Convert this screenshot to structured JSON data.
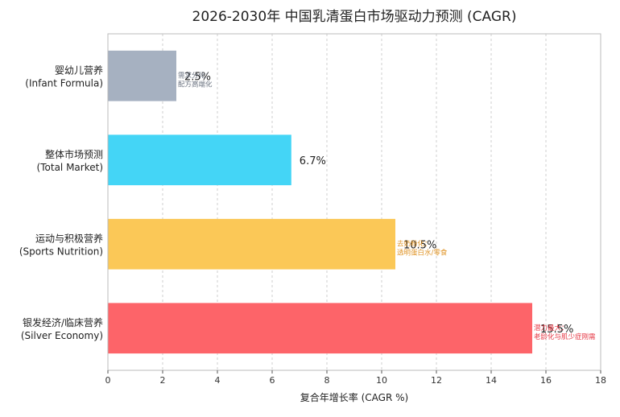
{
  "chart_data": {
    "type": "bar",
    "orientation": "horizontal",
    "title": "2026-2030年 中国乳清蛋白市场驱动力预测 (CAGR)",
    "xlabel": "复合年增长率 (CAGR %)",
    "ylabel": "",
    "xlim": [
      0,
      18
    ],
    "x_ticks": [
      "0",
      "2",
      "4",
      "6",
      "8",
      "10",
      "12",
      "14",
      "16",
      "18"
    ],
    "grid": "vertical dashed",
    "categories": [
      "婴幼儿营养\n(Infant Formula)",
      "整体市场预测\n(Total Market)",
      "运动与积极营养\n(Sports Nutrition)",
      "银发经济/临床营养\n(Silver Economy)"
    ],
    "values": [
      2.5,
      6.7,
      10.5,
      15.5
    ],
    "value_labels": [
      "2.5%",
      "6.7%",
      "10.5%",
      "15.5%"
    ],
    "annotations": [
      "需求分化：\n配方高端化",
      "",
      "去奶粉化：\n透明蛋白水/零食",
      "潜力最大：\n老龄化与肌少症刚需"
    ],
    "colors": [
      "#a6b1c1",
      "#44d5f6",
      "#fbc857",
      "#fd6469"
    ],
    "annotation_colors": [
      "#6b7380",
      "#2a9fc0",
      "#e0962a",
      "#e63946"
    ]
  }
}
